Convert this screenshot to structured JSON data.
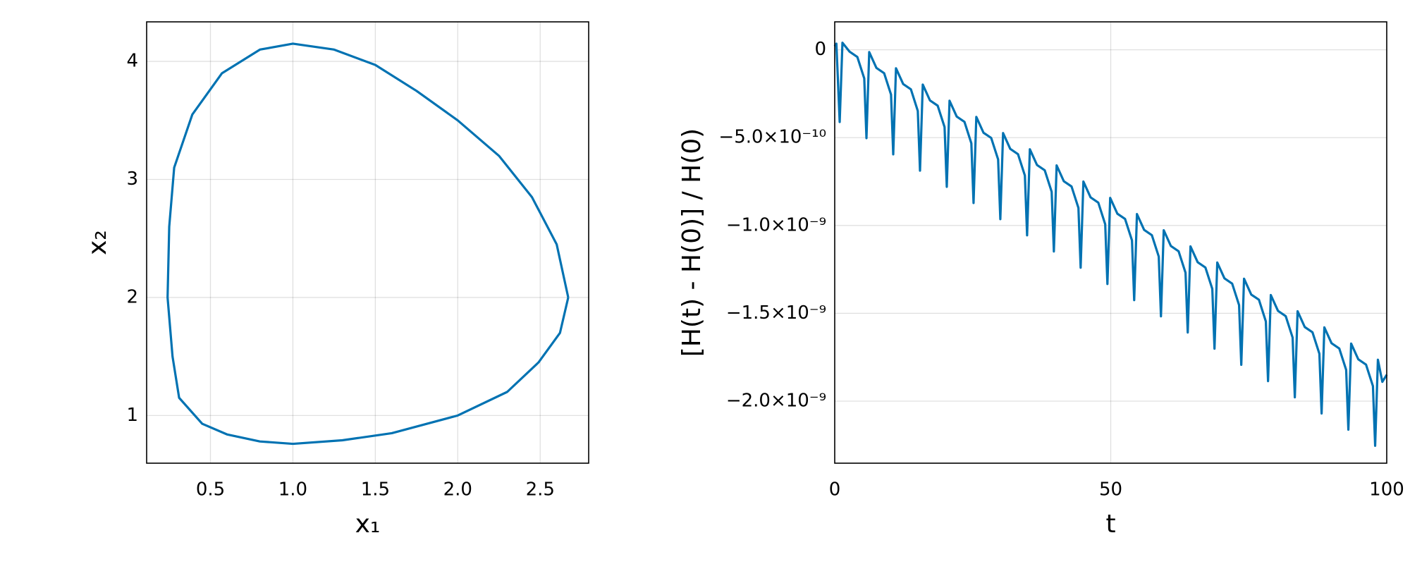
{
  "chart_data": [
    {
      "type": "line",
      "xlabel": "x₁",
      "ylabel": "x₂",
      "color": "#0072b2",
      "grid": true,
      "xlim": [
        0.113,
        2.794
      ],
      "ylim": [
        0.596,
        4.335
      ],
      "xticks": [
        0.5,
        {
          "value": 1.0,
          "label": "1.0"
        },
        1.5,
        {
          "value": 2.0,
          "label": "2.0"
        },
        2.5
      ],
      "yticks": [
        1,
        2,
        3,
        4
      ],
      "x": [
        2.67,
        2.6,
        2.45,
        2.25,
        2.0,
        1.75,
        1.5,
        1.25,
        1.0,
        0.8,
        0.57,
        0.39,
        0.28,
        0.25,
        0.24,
        0.27,
        0.31,
        0.45,
        0.6,
        0.8,
        1.0,
        1.3,
        1.6,
        2.0,
        2.3,
        2.49,
        2.62,
        2.67
      ],
      "values": [
        2.0,
        2.45,
        2.85,
        3.2,
        3.5,
        3.75,
        3.97,
        4.1,
        4.15,
        4.1,
        3.9,
        3.55,
        3.1,
        2.6,
        2.0,
        1.5,
        1.15,
        0.93,
        0.84,
        0.78,
        0.76,
        0.79,
        0.85,
        1.0,
        1.2,
        1.45,
        1.7,
        2.0
      ]
    },
    {
      "type": "line",
      "xlabel": "t",
      "ylabel": "[H(t) - H(0)] / H(0)",
      "color": "#0072b2",
      "grid": true,
      "xlim": [
        0,
        100
      ],
      "ylim": [
        -2.353e-09,
        1.59e-10
      ],
      "xticks": [
        0,
        50,
        100
      ],
      "yticks": [
        0,
        {
          "value": -5e-10,
          "label": "−5.0×10⁻¹⁰"
        },
        {
          "value": -1e-09,
          "label": "−1.0×10⁻⁹"
        },
        {
          "value": -1.5e-09,
          "label": "−1.5×10⁻⁹"
        },
        {
          "value": -2e-09,
          "label": "−2.0×10⁻⁹"
        }
      ],
      "x": [
        0,
        0.3,
        0.9,
        1.4,
        2.7,
        4.1,
        5.35,
        5.75,
        6.25,
        7.55,
        8.95,
        10.2,
        10.6,
        11.1,
        12.4,
        13.8,
        15.05,
        15.45,
        15.95,
        17.25,
        18.65,
        19.9,
        20.3,
        20.8,
        22.1,
        23.5,
        24.75,
        25.15,
        25.65,
        26.95,
        28.35,
        29.6,
        30.0,
        30.5,
        31.8,
        33.2,
        34.45,
        34.85,
        35.35,
        36.65,
        38.05,
        39.3,
        39.7,
        40.2,
        41.5,
        42.9,
        44.15,
        44.55,
        45.05,
        46.35,
        47.75,
        49.0,
        49.4,
        49.9,
        51.2,
        52.6,
        53.85,
        54.25,
        54.75,
        56.05,
        57.45,
        58.7,
        59.1,
        59.6,
        60.9,
        62.3,
        63.55,
        63.95,
        64.45,
        65.75,
        67.15,
        68.4,
        68.8,
        69.3,
        70.6,
        72.0,
        73.25,
        73.65,
        74.15,
        75.45,
        76.85,
        78.1,
        78.5,
        79.0,
        80.3,
        81.7,
        82.95,
        83.35,
        83.85,
        85.15,
        86.55,
        87.8,
        88.2,
        88.7,
        90.0,
        91.4,
        92.65,
        93.05,
        93.55,
        94.85,
        96.25,
        97.5,
        97.9,
        98.4,
        99.2,
        100
      ],
      "values": [
        2e-11,
        3.5e-11,
        -4.11e-10,
        4e-11,
        -1.1e-11,
        -4.1e-11,
        -1.63e-10,
        -5.03e-10,
        -1.3e-11,
        -1.03e-10,
        -1.33e-10,
        -2.55e-10,
        -5.95e-10,
        -1.05e-10,
        -1.95e-10,
        -2.25e-10,
        -3.48e-10,
        -6.88e-10,
        -1.98e-10,
        -2.88e-10,
        -3.18e-10,
        -4.4e-10,
        -7.8e-10,
        -2.9e-10,
        -3.8e-10,
        -4.1e-10,
        -5.32e-10,
        -8.72e-10,
        -3.82e-10,
        -4.72e-10,
        -5.02e-10,
        -6.24e-10,
        -9.64e-10,
        -4.74e-10,
        -5.64e-10,
        -5.94e-10,
        -7.16e-10,
        -1.056e-09,
        -5.66e-10,
        -6.56e-10,
        -6.86e-10,
        -8.08e-10,
        -1.148e-09,
        -6.58e-10,
        -7.48e-10,
        -7.78e-10,
        -9e-10,
        -1.24e-09,
        -7.5e-10,
        -8.4e-10,
        -8.7e-10,
        -9.93e-10,
        -1.333e-09,
        -8.43e-10,
        -9.33e-10,
        -9.63e-10,
        -1.085e-09,
        -1.425e-09,
        -9.35e-10,
        -1.025e-09,
        -1.055e-09,
        -1.177e-09,
        -1.517e-09,
        -1.027e-09,
        -1.117e-09,
        -1.147e-09,
        -1.269e-09,
        -1.609e-09,
        -1.119e-09,
        -1.209e-09,
        -1.239e-09,
        -1.361e-09,
        -1.701e-09,
        -1.211e-09,
        -1.301e-09,
        -1.331e-09,
        -1.453e-09,
        -1.793e-09,
        -1.303e-09,
        -1.393e-09,
        -1.423e-09,
        -1.546e-09,
        -1.886e-09,
        -1.396e-09,
        -1.486e-09,
        -1.516e-09,
        -1.638e-09,
        -1.978e-09,
        -1.488e-09,
        -1.578e-09,
        -1.608e-09,
        -1.73e-09,
        -2.07e-09,
        -1.58e-09,
        -1.67e-09,
        -1.7e-09,
        -1.822e-09,
        -2.162e-09,
        -1.672e-09,
        -1.762e-09,
        -1.792e-09,
        -1.914e-09,
        -2.254e-09,
        -1.764e-09,
        -1.89e-09,
        -1.85e-09
      ]
    }
  ]
}
